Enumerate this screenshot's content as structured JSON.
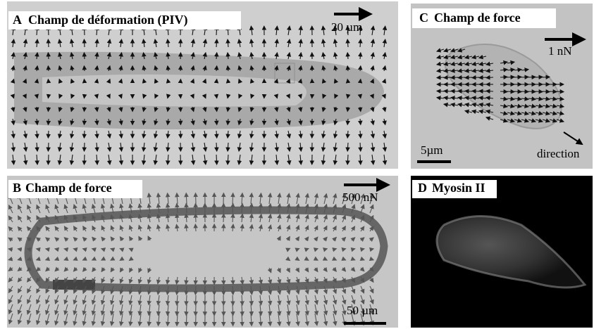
{
  "panels": [
    {
      "label": "A",
      "title": "Champ de déformation (PIV)",
      "arrow_scale": "20 µm"
    },
    {
      "label": "B",
      "title": "Champ de force",
      "arrow_scale": "500 nN",
      "scale_bar": "50  µm"
    },
    {
      "label": "C",
      "title": "Champ de force",
      "arrow_scale": "1 nN",
      "scale_bar": "5µm",
      "direction": "direction"
    },
    {
      "label": "D",
      "title": "Myosin II"
    }
  ]
}
